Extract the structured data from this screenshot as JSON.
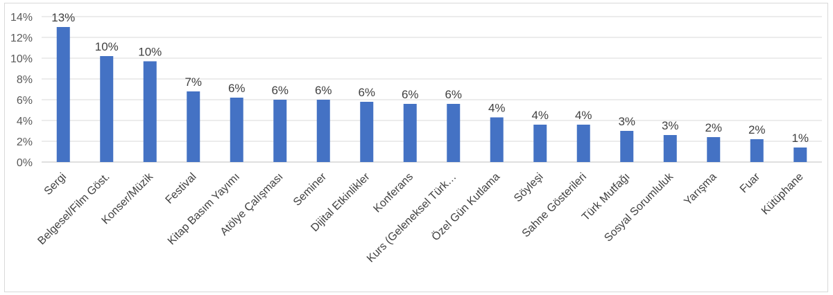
{
  "chart_data": {
    "type": "bar",
    "title": "",
    "xlabel": "",
    "ylabel": "",
    "categories": [
      "Sergi",
      "Belgesel/Film Göst.",
      "Konser/Müzik",
      "Festival",
      "Kitap Basım Yayımı",
      "Atölye Çalışması",
      "Seminer",
      "Dijital Etkinlikler",
      "Konferans",
      "Kurs (Geleneksel Türk…",
      "Özel Gün Kutlama",
      "Söyleşi",
      "Sahne Gösterileri",
      "Türk Mutfağı",
      "Sosyal Sorumluluk",
      "Yarışma",
      "Fuar",
      "Kütüphane"
    ],
    "values": [
      13.0,
      10.2,
      9.7,
      6.8,
      6.2,
      6.0,
      6.0,
      5.8,
      5.6,
      5.6,
      4.3,
      3.6,
      3.6,
      3.0,
      2.6,
      2.4,
      2.2,
      1.4
    ],
    "data_labels": [
      "13%",
      "10%",
      "10%",
      "7%",
      "6%",
      "6%",
      "6%",
      "6%",
      "6%",
      "6%",
      "4%",
      "4%",
      "4%",
      "3%",
      "3%",
      "2%",
      "2%",
      "1%"
    ],
    "ylim": [
      0,
      14
    ],
    "yticks": [
      0,
      2,
      4,
      6,
      8,
      10,
      12,
      14
    ],
    "ytick_labels": [
      "0%",
      "2%",
      "4%",
      "6%",
      "8%",
      "10%",
      "12%",
      "14%"
    ],
    "grid": true,
    "legend": "none",
    "colors": {
      "bar": "#4472c4",
      "grid": "#d9d9d9",
      "axis": "#bfbfbf"
    }
  }
}
